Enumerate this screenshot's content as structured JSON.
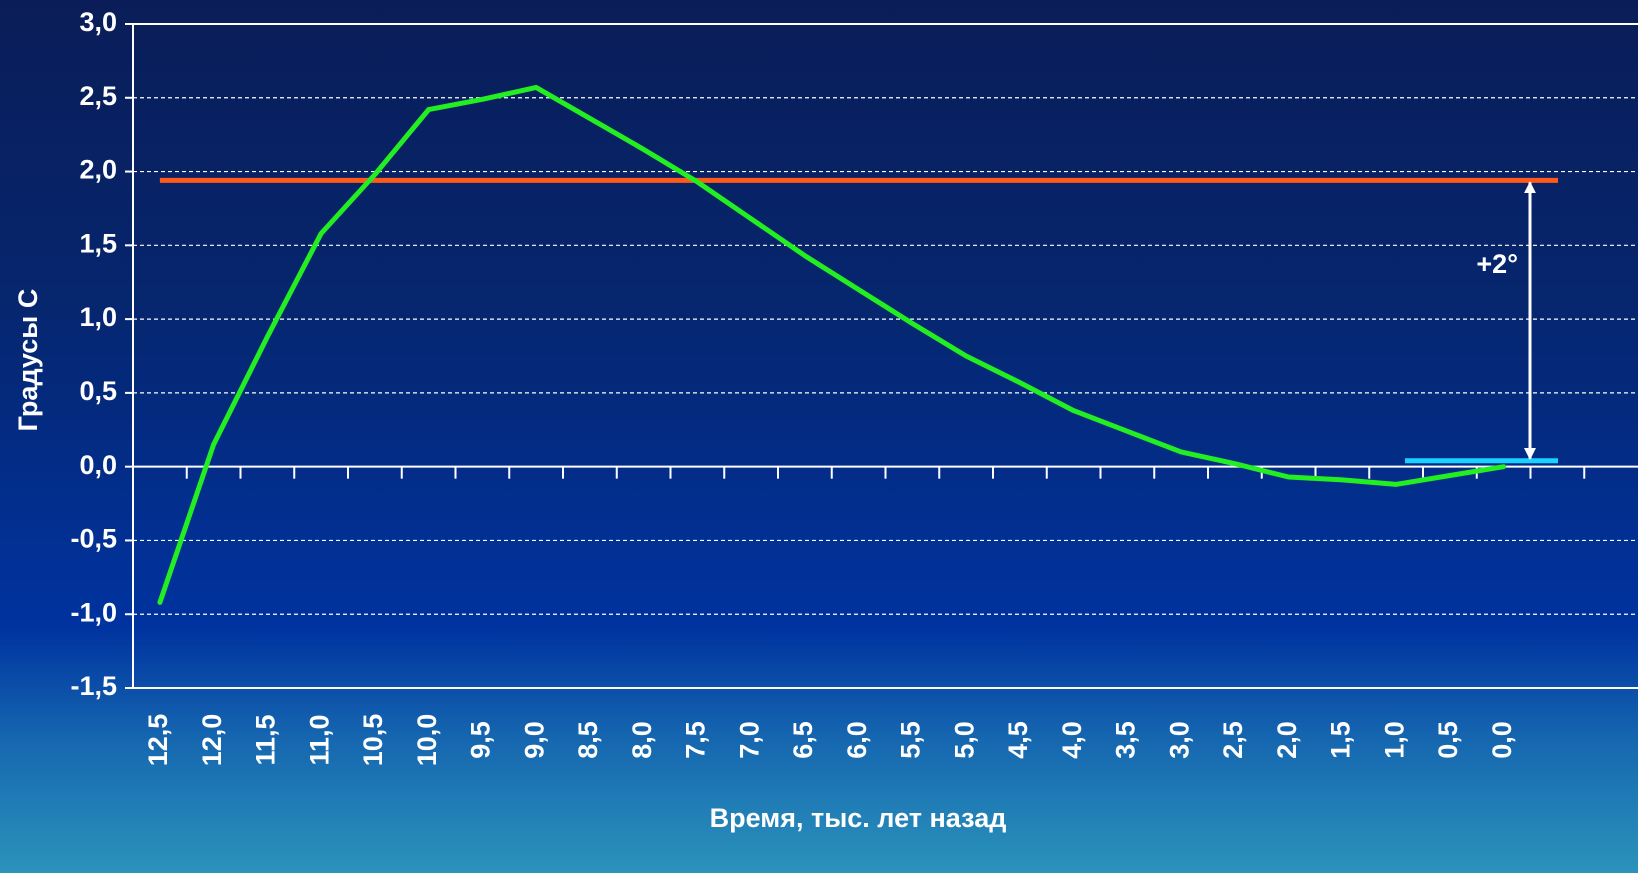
{
  "chart_data": {
    "type": "line",
    "xlabel": "Время, тыс. лет назад",
    "ylabel": "Градусы С",
    "categories": [
      "12,5",
      "12,0",
      "11,5",
      "11,0",
      "10,5",
      "10,0",
      "9,5",
      "9,0",
      "8,5",
      "8,0",
      "7,5",
      "7,0",
      "6,5",
      "6,0",
      "5,5",
      "5,0",
      "4,5",
      "4,0",
      "3,5",
      "3,0",
      "2,5",
      "2,0",
      "1,5",
      "1,0",
      "0,5",
      "0,0",
      null,
      null
    ],
    "series": [
      {
        "color": "#22ee22",
        "values": [
          -0.92,
          0.15,
          0.88,
          1.58,
          1.98,
          2.42,
          2.49,
          2.57,
          2.36,
          2.15,
          1.93,
          1.68,
          1.43,
          1.2,
          0.97,
          0.75,
          0.57,
          0.38,
          0.24,
          0.1,
          0.02,
          -0.07,
          -0.09,
          -0.12,
          -0.06,
          0.0,
          null,
          null
        ]
      }
    ],
    "reference_lines": [
      {
        "value": 1.94,
        "color": "#ff5a1a"
      },
      {
        "value": 0.04,
        "color": "#19d2ff"
      }
    ],
    "annotation": {
      "text": "+2°",
      "from": 0.04,
      "to": 1.94
    },
    "ylim": [
      -1.5,
      3.0
    ],
    "yticks": [
      {
        "value": -1.5,
        "label": "-1,5"
      },
      {
        "value": -1,
        "label": "-1,0"
      },
      {
        "value": -0.5,
        "label": "-0,5"
      },
      {
        "value": 0,
        "label": "0,0"
      },
      {
        "value": 0.5,
        "label": "0,5"
      },
      {
        "value": 1,
        "label": "1,0"
      },
      {
        "value": 1.5,
        "label": "1,5"
      },
      {
        "value": 2,
        "label": "2,0"
      },
      {
        "value": 2.5,
        "label": "2,5"
      },
      {
        "value": 3,
        "label": "3,0"
      }
    ],
    "grid": true
  }
}
